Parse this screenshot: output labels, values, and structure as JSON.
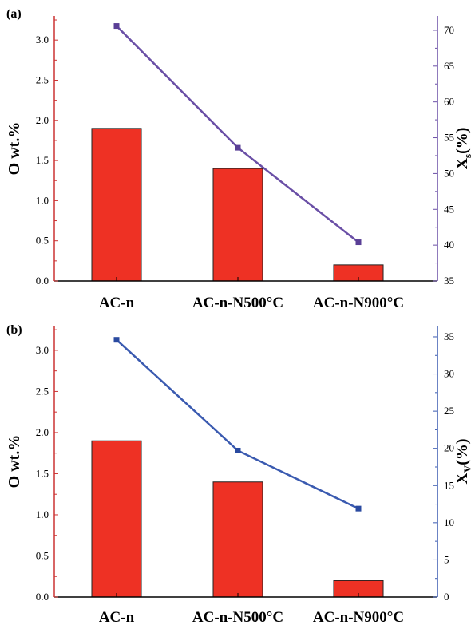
{
  "chart_data": [
    {
      "type": "bar",
      "panel_label": "(a)",
      "categories": [
        "AC-n",
        "AC-n-N500°C",
        "AC-n-N900°C"
      ],
      "series": [
        {
          "name": "",
          "axis": "left",
          "kind": "bar",
          "values": [
            1.9,
            1.4,
            0.2
          ]
        },
        {
          "name": "",
          "axis": "right",
          "kind": "line",
          "values": [
            70.6,
            53.6,
            40.4
          ]
        }
      ],
      "ylabel_left": "O wt.%",
      "ylabel_right": "X",
      "ylabel_right_sub": "s",
      "ylabel_right_suffix": "(%)",
      "ylim_left": [
        0,
        3.3
      ],
      "ylim_right": [
        35,
        72
      ],
      "yticks_left": [
        "0.0",
        "0.5",
        "1.0",
        "1.5",
        "2.0",
        "2.5",
        "3.0"
      ],
      "yticks_right": [
        "35",
        "40",
        "45",
        "50",
        "55",
        "60",
        "65",
        "70"
      ],
      "colors": {
        "bar": "#ee3124",
        "bar_edge": "#222222",
        "line": "#6a4fa6",
        "marker": "#5a3f96",
        "left_axis": "#cc3333",
        "right_axis": "#6a4fa6"
      },
      "grid": false
    },
    {
      "type": "bar",
      "panel_label": "(b)",
      "categories": [
        "AC-n",
        "AC-n-N500°C",
        "AC-n-N900°C"
      ],
      "series": [
        {
          "name": "",
          "axis": "left",
          "kind": "bar",
          "values": [
            1.9,
            1.4,
            0.2
          ]
        },
        {
          "name": "",
          "axis": "right",
          "kind": "line",
          "values": [
            34.6,
            19.7,
            11.9
          ]
        }
      ],
      "ylabel_left": "O wt.%",
      "ylabel_right": "X",
      "ylabel_right_sub": "V",
      "ylabel_right_suffix": "(%)",
      "ylim_left": [
        0,
        3.3
      ],
      "ylim_right": [
        0,
        36.5
      ],
      "yticks_left": [
        "0.0",
        "0.5",
        "1.0",
        "1.5",
        "2.0",
        "2.5",
        "3.0"
      ],
      "yticks_right": [
        "0",
        "5",
        "10",
        "15",
        "20",
        "25",
        "30",
        "35"
      ],
      "colors": {
        "bar": "#ee3124",
        "bar_edge": "#222222",
        "line": "#3a5ab0",
        "marker": "#2a4aa0",
        "left_axis": "#cc3333",
        "right_axis": "#3a5ab0"
      },
      "grid": false
    }
  ]
}
